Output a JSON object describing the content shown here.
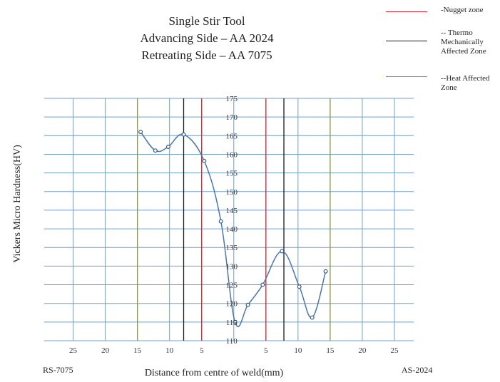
{
  "chart_data": {
    "type": "line",
    "title": [
      "Single Stir Tool",
      "Advancing Side – AA 2024",
      "Retreating Side – AA 7075"
    ],
    "xlabel": "Distance from centre of weld(mm)",
    "ylabel": "Vickers Micro Hardness(HV)",
    "x_left_label": "RS-7075",
    "x_right_label": "AS-2024",
    "x_ticks": [
      -25,
      -20,
      -15,
      -10,
      -5,
      5,
      10,
      15,
      20,
      25
    ],
    "x_tick_labels": [
      "25",
      "20",
      "15",
      "10",
      "5",
      "5",
      "10",
      "15",
      "20",
      "25"
    ],
    "xlim": [
      -29.5,
      28
    ],
    "y_ticks": [
      110,
      115,
      120,
      125,
      130,
      135,
      140,
      145,
      150,
      155,
      160,
      165,
      170,
      175
    ],
    "ylim": [
      110,
      175
    ],
    "grid": true,
    "series": [
      {
        "points": [
          [
            -14.5,
            166
          ],
          [
            -12.2,
            161
          ],
          [
            -10.2,
            162
          ],
          [
            -7.8,
            165.3
          ],
          [
            -4.6,
            158.2
          ],
          [
            -2.0,
            142
          ],
          [
            0.2,
            115
          ],
          [
            2.2,
            119.6
          ],
          [
            4.5,
            125
          ],
          [
            7.5,
            134
          ],
          [
            10.2,
            124.5
          ],
          [
            12.2,
            116.2
          ],
          [
            14.3,
            128.6
          ]
        ],
        "color": "#4a77b2"
      }
    ],
    "zone_lines": [
      {
        "zone": "nugget",
        "x": [
          -5,
          5
        ],
        "color": "#d9262c"
      },
      {
        "zone": "tmaz",
        "x": [
          -7.8,
          7.8
        ],
        "color": "#1a1a1a"
      },
      {
        "zone": "haz",
        "x": [
          -15,
          15
        ],
        "color": "#8a9a3c"
      }
    ],
    "legend": [
      {
        "label": "-Nugget zone",
        "color": "#d9262c"
      },
      {
        "label": "-- Thermo Mechanically Affected Zone",
        "lines": [
          "-- Thermo",
          "Mechanically",
          "Affected Zone"
        ],
        "color": "#1a1a1a"
      },
      {
        "label": "--Heat Affected Zone",
        "lines": [
          "--Heat Affected",
          "Zone"
        ],
        "color": "#8a9a3c"
      }
    ],
    "legend_position": "top-right"
  }
}
